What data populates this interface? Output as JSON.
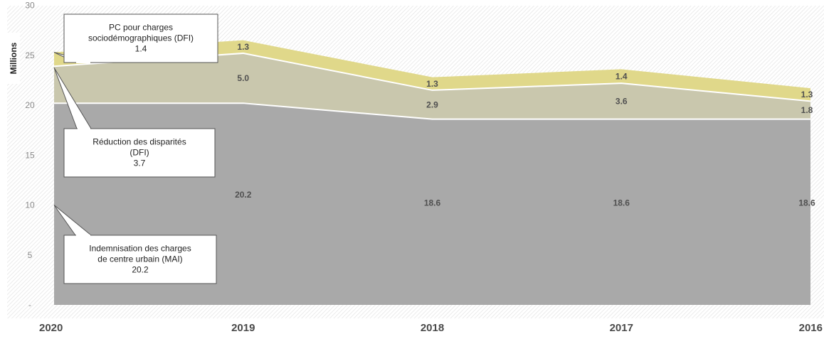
{
  "chart_data": {
    "type": "area",
    "stacked": true,
    "ylabel": "Millions",
    "ylim": [
      0,
      30
    ],
    "yticks": [
      {
        "value": 0,
        "label": "-"
      },
      {
        "value": 5,
        "label": "5"
      },
      {
        "value": 10,
        "label": "10"
      },
      {
        "value": 15,
        "label": "15"
      },
      {
        "value": 20,
        "label": "20"
      },
      {
        "value": 25,
        "label": "25"
      },
      {
        "value": 30,
        "label": "30"
      }
    ],
    "categories": [
      "2020",
      "2019",
      "2018",
      "2017",
      "2016"
    ],
    "series": [
      {
        "name": "Indemnisation des charges de centre urbain (MAI)",
        "values": [
          20.2,
          20.2,
          18.6,
          18.6,
          18.6
        ],
        "labels": [
          "",
          "20.2",
          "18.6",
          "18.6",
          "18.6"
        ],
        "color": "#a9a9a9"
      },
      {
        "name": "Réduction des disparités (DFI)",
        "values": [
          3.7,
          5.0,
          2.9,
          3.6,
          1.8
        ],
        "labels": [
          "",
          "5.0",
          "2.9",
          "3.6",
          "1.8"
        ],
        "color": "#c9c7ad"
      },
      {
        "name": "PC pour charges sociodémographiques (DFI)",
        "values": [
          1.4,
          1.3,
          1.3,
          1.4,
          1.3
        ],
        "labels": [
          "",
          "1.3",
          "1.3",
          "1.4",
          "1.3"
        ],
        "color": "#e0d88a"
      }
    ],
    "callouts": [
      {
        "lines": [
          "PC pour charges",
          "sociodémographiques (DFI)",
          "1.4"
        ]
      },
      {
        "lines": [
          "Réduction des disparités",
          "(DFI)",
          "3.7"
        ]
      },
      {
        "lines": [
          "Indemnisation des charges",
          "de centre urbain (MAI)",
          "20.2"
        ]
      }
    ]
  }
}
